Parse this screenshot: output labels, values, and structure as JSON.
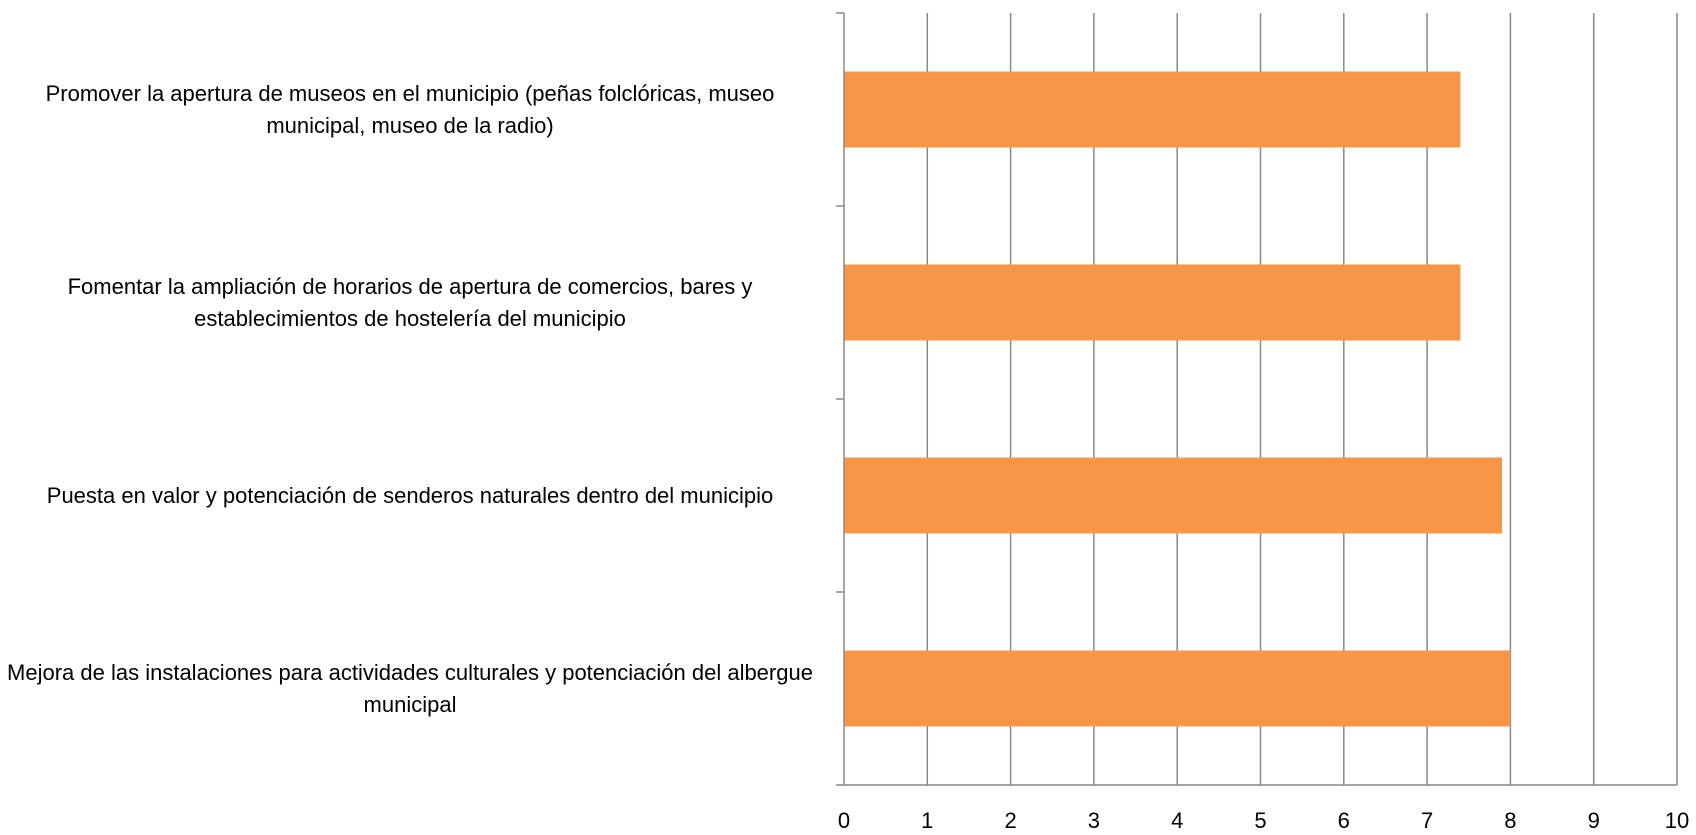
{
  "chart_data": {
    "type": "bar",
    "orientation": "horizontal",
    "categories": [
      "Promover la apertura de museos en el municipio (peñas folclóricas, museo municipal, museo de la radio)",
      "Fomentar la ampliación de horarios de apertura de comercios, bares y establecimientos de hostelería del municipio",
      "Puesta en valor y potenciación de senderos naturales dentro del municipio",
      "Mejora de las instalaciones para actividades culturales y potenciación del albergue municipal"
    ],
    "values": [
      7.4,
      7.4,
      7.9,
      8.0
    ],
    "color": "#f79646",
    "xlim": [
      0,
      10
    ],
    "xticks": [
      0,
      1,
      2,
      3,
      4,
      5,
      6,
      7,
      8,
      9,
      10
    ],
    "grid": true
  }
}
